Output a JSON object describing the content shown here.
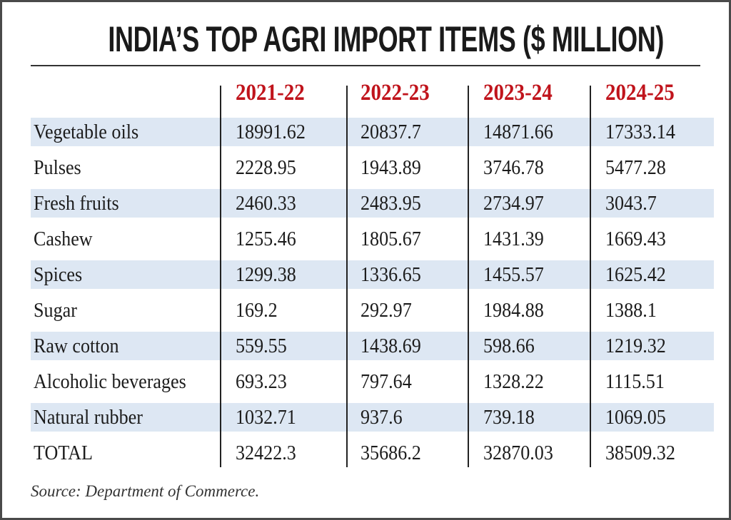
{
  "chart_data": {
    "type": "table",
    "title": "INDIA’S TOP AGRI IMPORT ITEMS ($ MILLION)",
    "columns": [
      "2021-22",
      "2022-23",
      "2023-24",
      "2024-25"
    ],
    "rows": [
      {
        "label": "Vegetable oils",
        "values": [
          "18991.62",
          "20837.7",
          "14871.66",
          "17333.14"
        ]
      },
      {
        "label": "Pulses",
        "values": [
          "2228.95",
          "1943.89",
          "3746.78",
          "5477.28"
        ]
      },
      {
        "label": "Fresh fruits",
        "values": [
          "2460.33",
          "2483.95",
          "2734.97",
          "3043.7"
        ]
      },
      {
        "label": "Cashew",
        "values": [
          "1255.46",
          "1805.67",
          "1431.39",
          "1669.43"
        ]
      },
      {
        "label": "Spices",
        "values": [
          "1299.38",
          "1336.65",
          "1455.57",
          "1625.42"
        ]
      },
      {
        "label": "Sugar",
        "values": [
          "169.2",
          "292.97",
          "1984.88",
          "1388.1"
        ]
      },
      {
        "label": "Raw cotton",
        "values": [
          "559.55",
          "1438.69",
          "598.66",
          "1219.32"
        ]
      },
      {
        "label": "Alcoholic beverages",
        "values": [
          "693.23",
          "797.64",
          "1328.22",
          "1115.51"
        ]
      },
      {
        "label": "Natural rubber",
        "values": [
          "1032.71",
          "937.6",
          "739.18",
          "1069.05"
        ]
      },
      {
        "label": "TOTAL",
        "values": [
          "32422.3",
          "35686.2",
          "32870.03",
          "38509.32"
        ]
      }
    ],
    "source": "Source: Department of Commerce.",
    "colors": {
      "header": "#c0141c",
      "row_shade": "#dde7f3",
      "text": "#1c1c1c"
    }
  }
}
